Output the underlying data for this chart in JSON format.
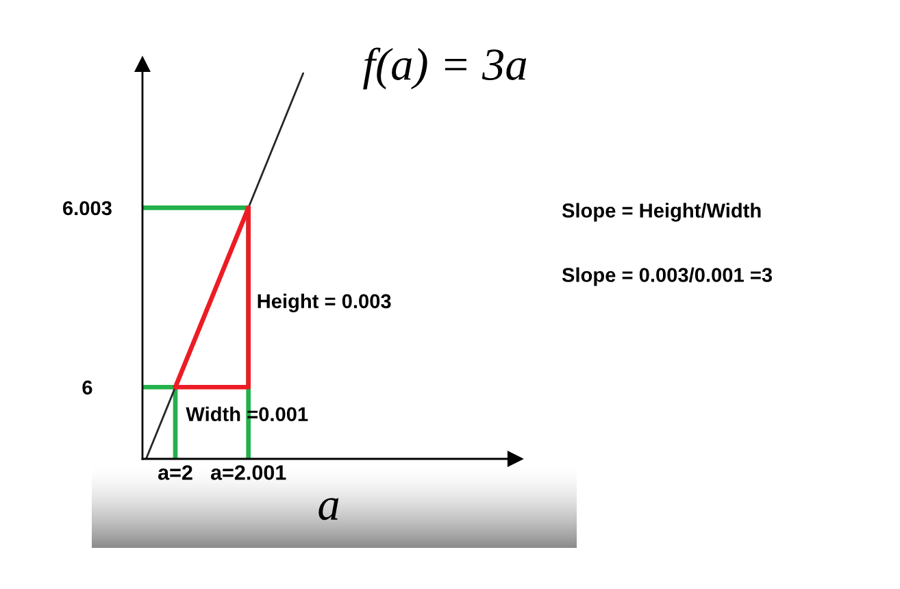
{
  "chart_data": {
    "type": "line",
    "title": "f(a) = 3a",
    "xlabel": "a",
    "xlim": [
      1.99955,
      2.00465
    ],
    "ylim": [
      5.9988,
      6.0054
    ],
    "xticks": [
      {
        "value": 2,
        "label": "a=2"
      },
      {
        "value": 2.001,
        "label": "a=2.001"
      }
    ],
    "yticks": [
      6,
      6.003
    ],
    "line_style": "solid",
    "series": [
      {
        "color": "#22b14c",
        "x": [
          1.99955,
          2.001,
          2.001
        ],
        "values": [
          6.003,
          6.003,
          5.9988
        ]
      },
      {
        "color": "#22b14c",
        "x": [
          1.99955,
          2,
          2
        ],
        "values": [
          6,
          6,
          5.9988
        ]
      },
      {
        "color": "#262626",
        "x": [
          1.9996,
          2.00175
        ],
        "values": [
          5.9988,
          6.00525
        ]
      },
      {
        "color": "#ed1c24",
        "x": [
          2,
          2.001
        ],
        "values": [
          6,
          6.003
        ]
      },
      {
        "color": "#ed1c24",
        "x": [
          2,
          2.001,
          2.001
        ],
        "values": [
          6,
          6,
          6.003
        ]
      }
    ],
    "annotations": [
      {
        "text": "Height = 0.003",
        "x": 2.001,
        "y": 6.0015
      },
      {
        "text": "Width =0.001",
        "x": 2.0005,
        "y": 6
      },
      "Slope = Height/Width",
      "Slope = 0.003/0.001 =3"
    ]
  }
}
